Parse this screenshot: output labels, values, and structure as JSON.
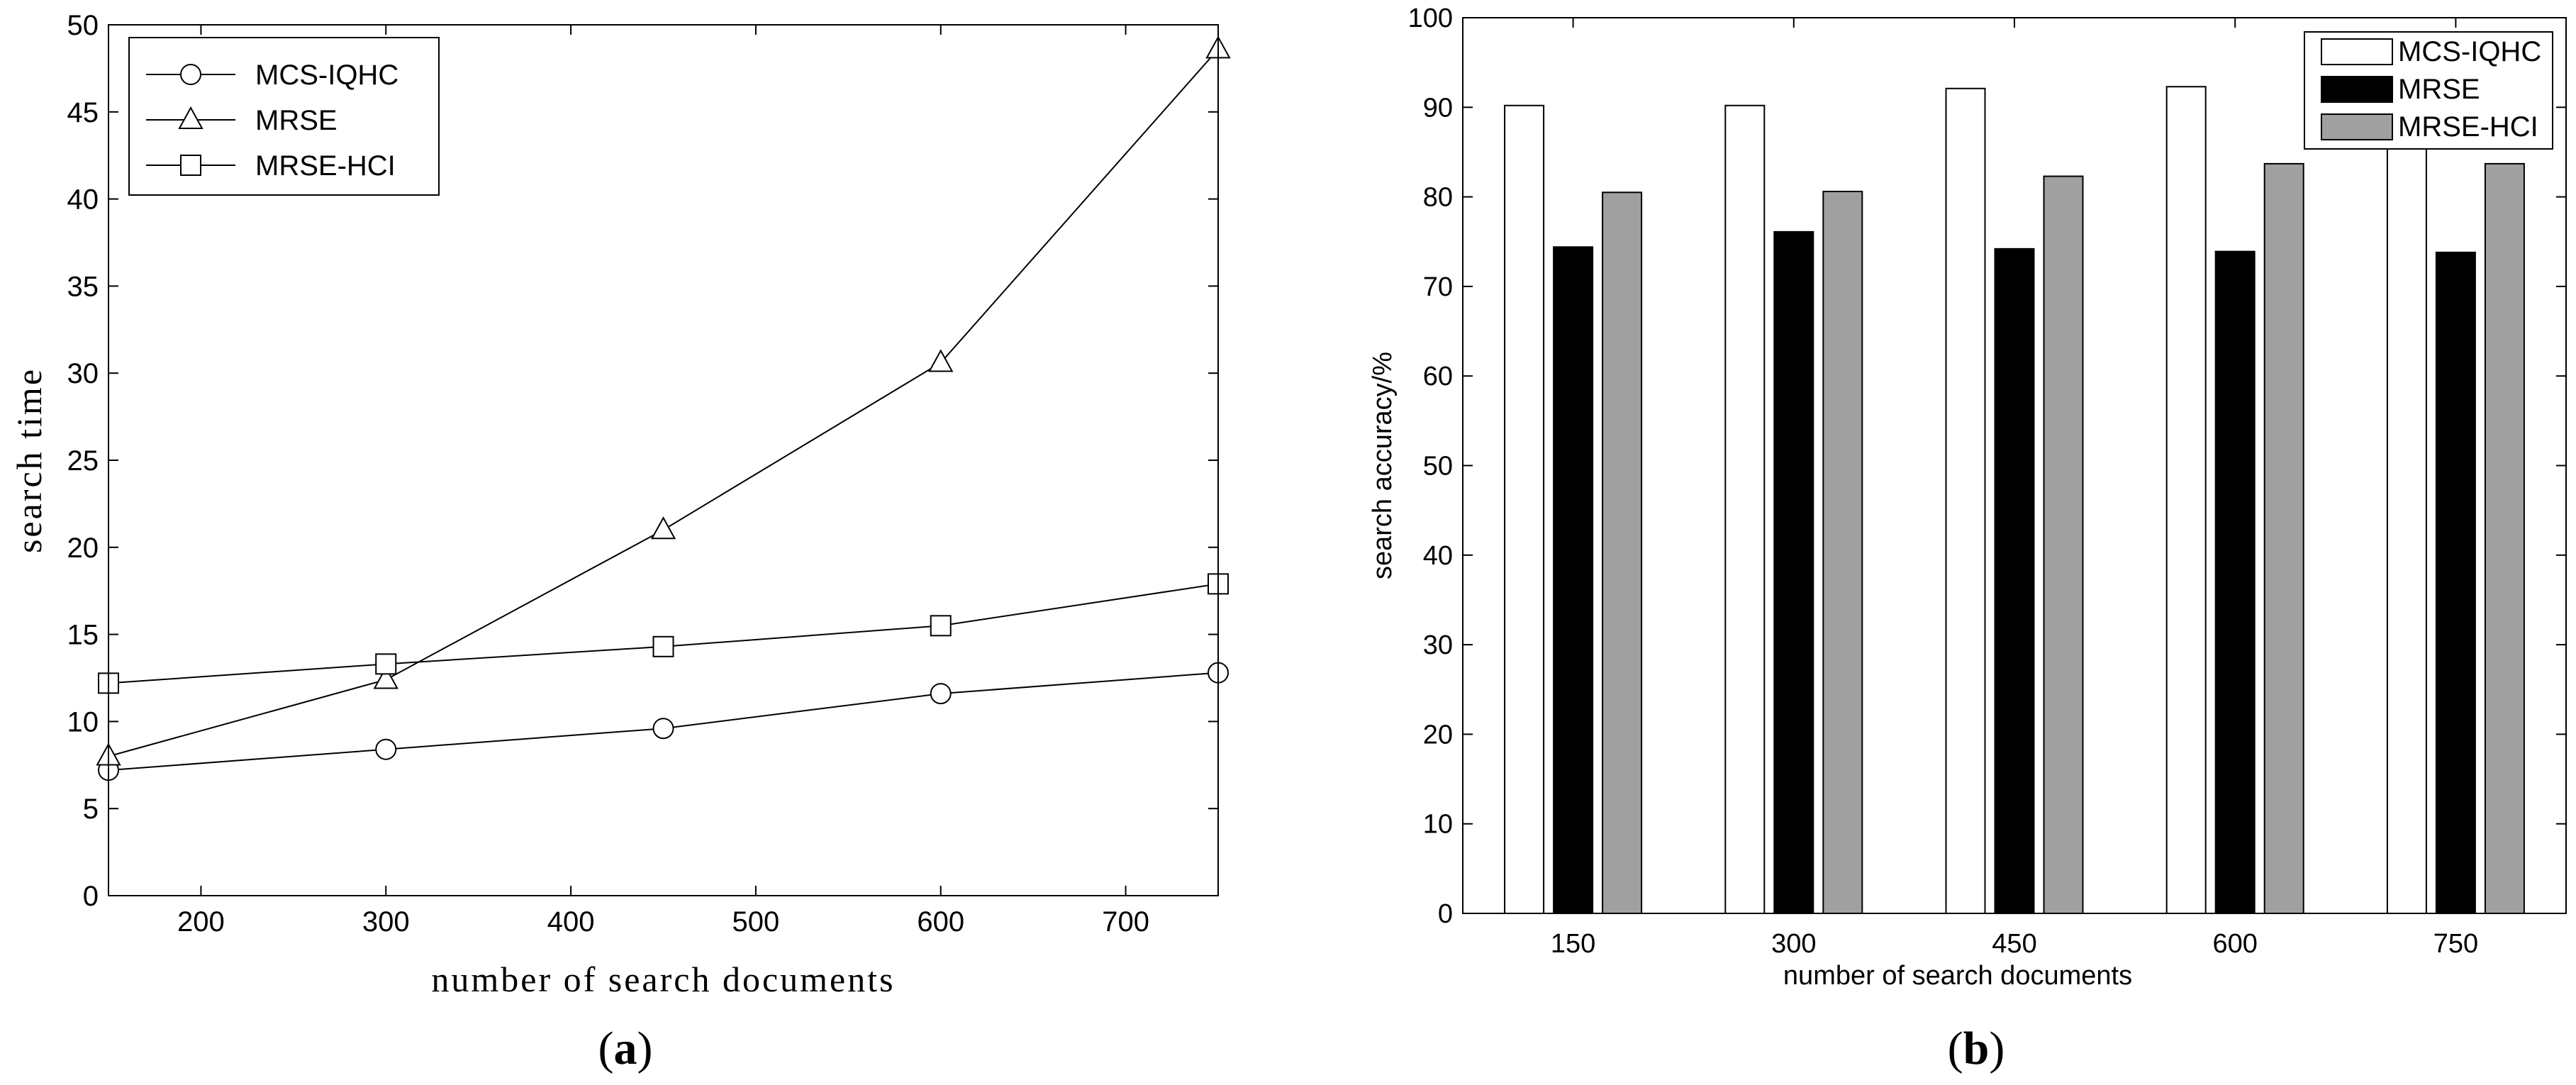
{
  "panels": {
    "a": {
      "label_open": "(",
      "label_letter": "a",
      "label_close": ")"
    },
    "b": {
      "label_open": "(",
      "label_letter": "b",
      "label_close": ")"
    }
  },
  "chart_data": [
    {
      "type": "line",
      "xlabel": "number of search documents",
      "ylabel": "search time",
      "xlim": [
        150,
        750
      ],
      "ylim": [
        0,
        50
      ],
      "xticks": [
        200,
        300,
        400,
        500,
        600,
        700
      ],
      "yticks": [
        0,
        5,
        10,
        15,
        20,
        25,
        30,
        35,
        40,
        45,
        50
      ],
      "x": [
        150,
        300,
        450,
        600,
        750
      ],
      "grid": false,
      "legend_position": "top-left",
      "series": [
        {
          "name": "MCS-IQHC",
          "marker": "circle",
          "values": [
            7.2,
            8.4,
            9.6,
            11.6,
            12.8
          ]
        },
        {
          "name": "MRSE",
          "marker": "triangle",
          "values": [
            8.0,
            12.4,
            21.0,
            30.6,
            48.6
          ]
        },
        {
          "name": "MRSE-HCI",
          "marker": "square",
          "values": [
            12.2,
            13.3,
            14.3,
            15.5,
            17.9
          ]
        }
      ]
    },
    {
      "type": "bar",
      "xlabel": "number of search documents",
      "ylabel": "search accuracy/%",
      "categories": [
        "150",
        "300",
        "450",
        "600",
        "750"
      ],
      "ylim": [
        0,
        100
      ],
      "yticks": [
        0,
        10,
        20,
        30,
        40,
        50,
        60,
        70,
        80,
        90,
        100
      ],
      "grid": false,
      "legend_position": "top-right",
      "series": [
        {
          "name": "MCS-IQHC",
          "color": "#ffffff",
          "values": [
            90.2,
            90.2,
            92.1,
            92.3,
            92.3
          ]
        },
        {
          "name": "MRSE",
          "color": "#000000",
          "values": [
            74.4,
            76.1,
            74.2,
            73.9,
            73.8
          ]
        },
        {
          "name": "MRSE-HCI",
          "color": "#a0a0a0",
          "values": [
            80.5,
            80.6,
            82.3,
            83.7,
            83.7
          ]
        }
      ]
    }
  ]
}
